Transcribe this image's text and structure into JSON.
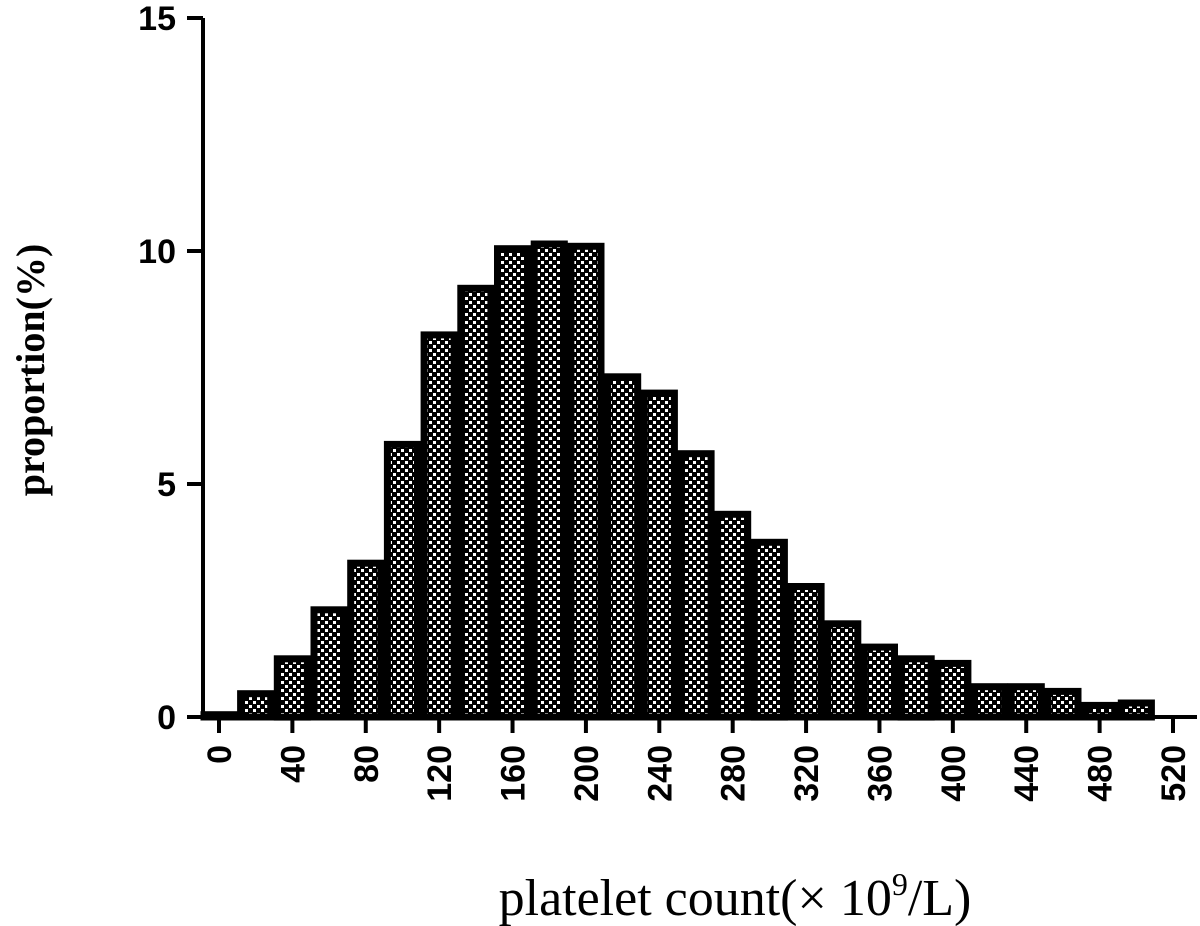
{
  "chart_data": {
    "type": "bar",
    "title": "",
    "xlabel": "platelet count(× 10",
    "xlabel_sup": "9",
    "xlabel_suffix": "/L)",
    "ylabel": "proportion(%)",
    "ylim": [
      0,
      15
    ],
    "yticks": [
      0,
      5,
      10,
      15
    ],
    "xticks": [
      0,
      40,
      80,
      120,
      160,
      200,
      240,
      280,
      320,
      360,
      400,
      440,
      480,
      520
    ],
    "bin_width": 20,
    "categories": [
      0,
      20,
      40,
      60,
      80,
      100,
      120,
      140,
      160,
      180,
      200,
      220,
      240,
      260,
      280,
      300,
      320,
      340,
      360,
      380,
      400,
      420,
      440,
      460,
      480,
      500
    ],
    "values": [
      0.05,
      0.5,
      1.25,
      2.3,
      3.3,
      5.85,
      8.2,
      9.2,
      10.05,
      10.15,
      10.1,
      7.3,
      6.95,
      5.65,
      4.35,
      3.75,
      2.8,
      2.0,
      1.5,
      1.25,
      1.15,
      0.65,
      0.65,
      0.55,
      0.25,
      0.3
    ],
    "grid": false,
    "legend": "none",
    "colors": {
      "bar_fill": "#000000",
      "bar_pattern": "#ffffff",
      "axis": "#000000"
    }
  }
}
